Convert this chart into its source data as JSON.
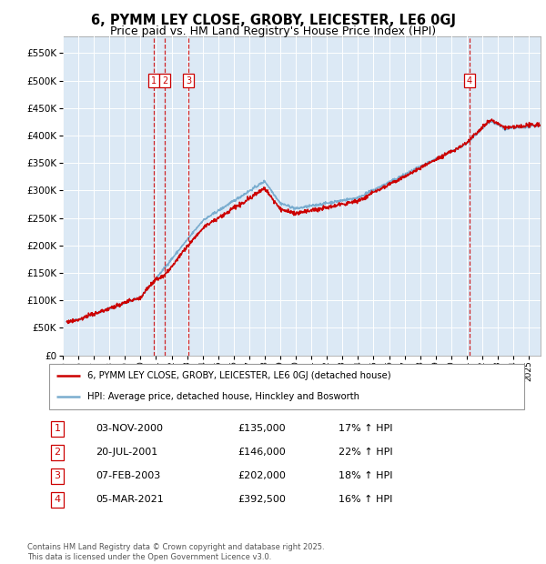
{
  "title": "6, PYMM LEY CLOSE, GROBY, LEICESTER, LE6 0GJ",
  "subtitle": "Price paid vs. HM Land Registry's House Price Index (HPI)",
  "legend_line1": "6, PYMM LEY CLOSE, GROBY, LEICESTER, LE6 0GJ (detached house)",
  "legend_line2": "HPI: Average price, detached house, Hinckley and Bosworth",
  "footer": "Contains HM Land Registry data © Crown copyright and database right 2025.\nThis data is licensed under the Open Government Licence v3.0.",
  "transactions": [
    {
      "num": 1,
      "date": "03-NOV-2000",
      "price": "£135,000",
      "pct": "17% ↑ HPI"
    },
    {
      "num": 2,
      "date": "20-JUL-2001",
      "price": "£146,000",
      "pct": "22% ↑ HPI"
    },
    {
      "num": 3,
      "date": "07-FEB-2003",
      "price": "£202,000",
      "pct": "18% ↑ HPI"
    },
    {
      "num": 4,
      "date": "05-MAR-2021",
      "price": "£392,500",
      "pct": "16% ↑ HPI"
    }
  ],
  "transaction_dates_decimal": [
    2000.843,
    2001.553,
    2003.096,
    2021.176
  ],
  "transaction_prices": [
    135000,
    146000,
    202000,
    392500
  ],
  "ylim": [
    0,
    580000
  ],
  "yticks": [
    0,
    50000,
    100000,
    150000,
    200000,
    250000,
    300000,
    350000,
    400000,
    450000,
    500000,
    550000
  ],
  "xlim_start": 1995.25,
  "xlim_end": 2025.75,
  "background_color": "#dce9f5",
  "grid_color": "#ffffff",
  "red_color": "#cc0000",
  "blue_color": "#7aadcf",
  "vline_color": "#cc0000"
}
